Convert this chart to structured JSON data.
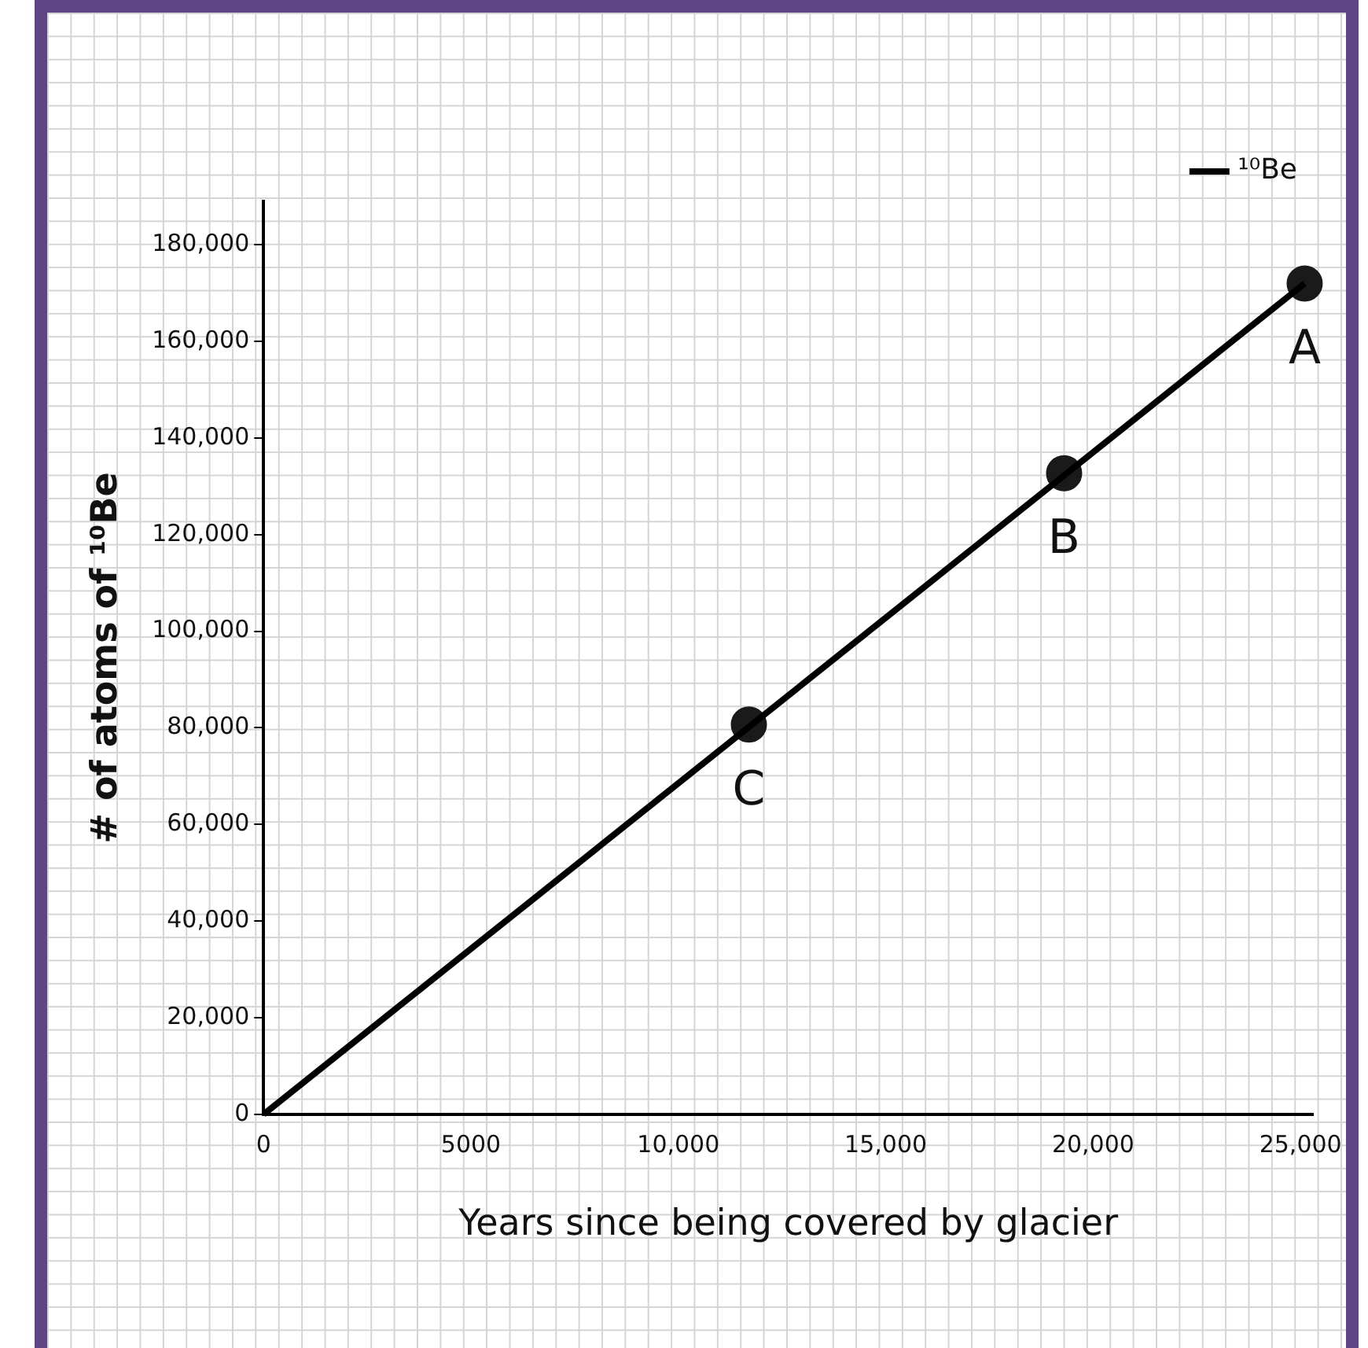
{
  "chart_data": {
    "type": "line",
    "xlabel": "Years since being covered by glacier",
    "ylabel": "# of atoms of ¹⁰Be",
    "xlim": [
      0,
      25300
    ],
    "ylim": [
      0,
      189000
    ],
    "xticks": [
      0,
      5000,
      {
        "value": 10000,
        "label": "10,000"
      },
      {
        "value": 15000,
        "label": "15,000"
      },
      {
        "value": 20000,
        "label": "20,000"
      },
      {
        "value": 25000,
        "label": "25,000"
      }
    ],
    "yticks": [
      0,
      {
        "value": 20000,
        "label": "20,000"
      },
      {
        "value": 40000,
        "label": "40,000"
      },
      {
        "value": 60000,
        "label": "60,000"
      },
      {
        "value": 80000,
        "label": "80,000"
      },
      {
        "value": 100000,
        "label": "100,000"
      },
      {
        "value": 120000,
        "label": "120,000"
      },
      {
        "value": 140000,
        "label": "140,000"
      },
      {
        "value": 160000,
        "label": "160,000"
      },
      {
        "value": 180000,
        "label": "180,000"
      }
    ],
    "series": [
      {
        "name": "¹⁰Be",
        "color": "#000000",
        "x": [
          0,
          25100
        ],
        "values": [
          0,
          172000
        ],
        "marker": "none"
      },
      {
        "type": "scatter",
        "color": "#1a1a1a",
        "x": [
          11700,
          19300,
          25100
        ],
        "values": [
          80700,
          132700,
          172000
        ],
        "marker": "circle"
      }
    ],
    "annotations": [
      {
        "text": "C",
        "x": 11700,
        "y": 80700
      },
      {
        "text": "B",
        "x": 19300,
        "y": 132700
      },
      {
        "text": "A",
        "x": 25100,
        "y": 172000
      }
    ],
    "legend": "top right",
    "grid": false
  }
}
